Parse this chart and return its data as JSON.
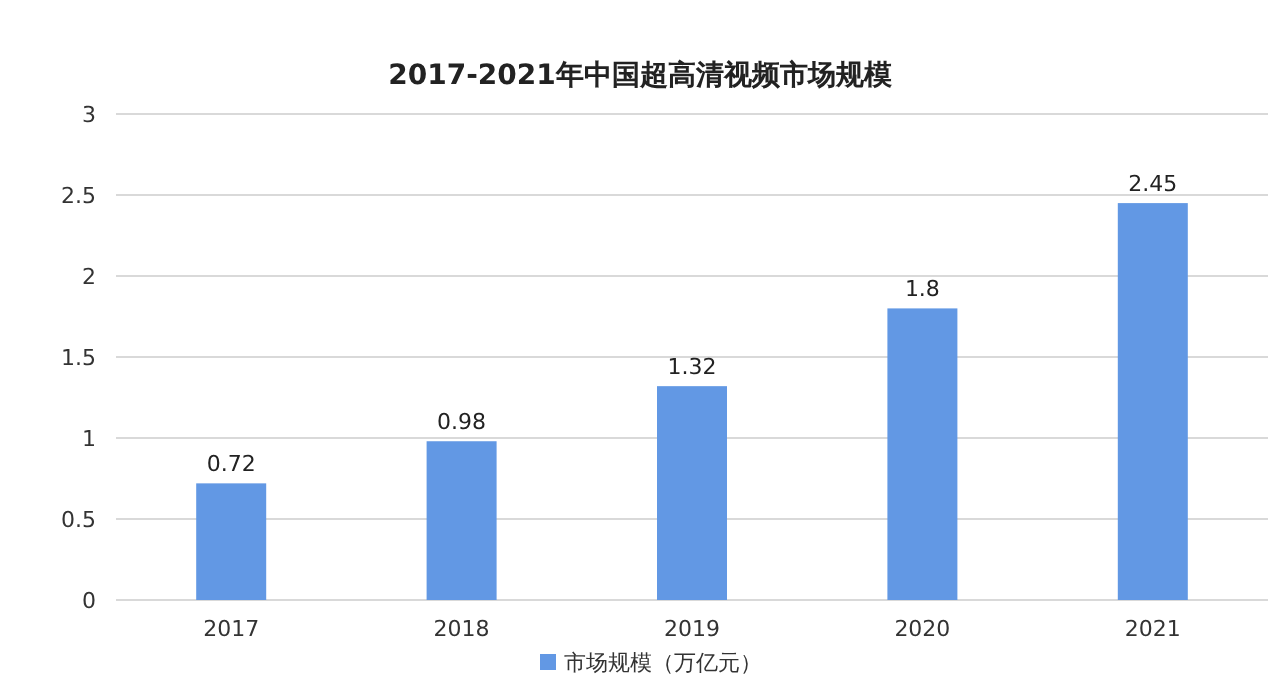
{
  "chart_data": {
    "type": "bar",
    "title": "2017-2021年中国超高清视频市场规模",
    "categories": [
      "2017",
      "2018",
      "2019",
      "2020",
      "2021"
    ],
    "series": [
      {
        "name": "市场规模（万亿元）",
        "color": "#6298e4",
        "values": [
          0.72,
          0.98,
          1.32,
          1.8,
          2.45
        ]
      }
    ],
    "ylim": [
      0,
      3
    ],
    "yticks": [
      0,
      0.5,
      1,
      1.5,
      2,
      2.5,
      3
    ],
    "grid": "y",
    "legend": "bottom",
    "data_labels": true
  }
}
